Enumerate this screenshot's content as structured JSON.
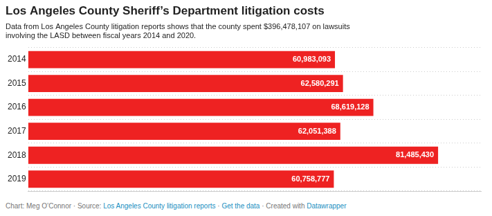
{
  "chart_data": {
    "type": "bar",
    "orientation": "horizontal",
    "title": "Los Angeles County Sheriff’s Department litigation costs",
    "subtitle": "Data from Los Angeles County litigation reports shows that the county spent $396,478,107 on lawsuits\ninvolving the LASD between fiscal years 2014 and 2020.",
    "footer": [
      {
        "text": "Chart: Meg O’Connor · Source: ",
        "color": "#777777"
      },
      {
        "text": "Los Angeles County litigation reports",
        "color": "#1a8fc1"
      },
      {
        "text": " · ",
        "color": "#777777"
      },
      {
        "text": "Get the data",
        "color": "#1a8fc1"
      },
      {
        "text": " · Created with ",
        "color": "#777777"
      },
      {
        "text": "Datawrapper",
        "color": "#1a8fc1"
      }
    ],
    "categories": [
      "2014",
      "2015",
      "2016",
      "2017",
      "2018",
      "2019"
    ],
    "values": [
      60983093,
      62580291,
      68619128,
      62051388,
      81485430,
      60758777
    ],
    "value_labels": [
      "60,983,093",
      "62,580,291",
      "68,619,128",
      "62,051,388",
      "81,485,430",
      "60,758,777"
    ],
    "data_labels": true,
    "color": "#ee2222",
    "xlim": [
      0,
      90000000
    ],
    "xticks": [],
    "tick_labels": "y",
    "grid": true
  }
}
